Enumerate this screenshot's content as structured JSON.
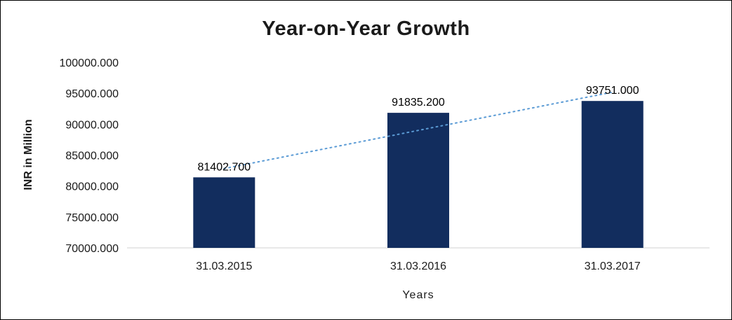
{
  "chart_data": {
    "type": "bar",
    "title": "Year-on-Year Growth",
    "xlabel": "Years",
    "ylabel": "INR in Million",
    "categories": [
      "31.03.2015",
      "31.03.2016",
      "31.03.2017"
    ],
    "values": [
      81402.7,
      91835.2,
      93751.0
    ],
    "value_labels": [
      "81402.700",
      "91835.200",
      "93751.000"
    ],
    "ylim": [
      70000,
      100000
    ],
    "yticks": [
      {
        "value": 70000,
        "label": "70000.000"
      },
      {
        "value": 75000,
        "label": "75000.000"
      },
      {
        "value": 80000,
        "label": "80000.000"
      },
      {
        "value": 85000,
        "label": "85000.000"
      },
      {
        "value": 90000,
        "label": "90000.000"
      },
      {
        "value": 95000,
        "label": "95000.000"
      },
      {
        "value": 100000,
        "label": "100000.000"
      }
    ],
    "bar_color": "#122D5E",
    "trendline": {
      "type": "linear",
      "color": "#5B9BD5",
      "style": "dotted"
    },
    "legend": "none",
    "grid": "off"
  }
}
